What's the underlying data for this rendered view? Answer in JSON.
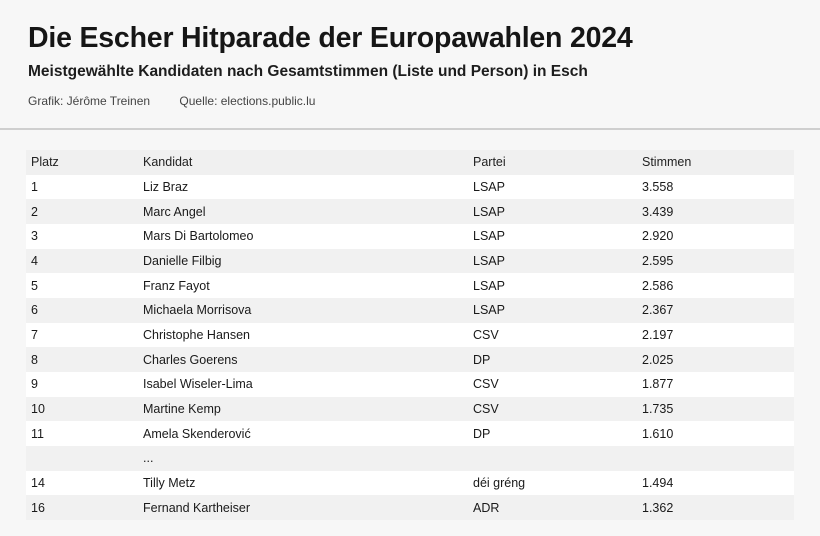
{
  "header": {
    "title": "Die Escher Hitparade der Europawahlen 2024",
    "subtitle": "Meistgewählte Kandidaten nach Gesamtstimmen (Liste und Person) in Esch",
    "credit_graphic": "Grafik: Jérôme Treinen",
    "credit_source": "Quelle: elections.public.lu"
  },
  "chart_data": {
    "type": "table",
    "columns": [
      "Platz",
      "Kandidat",
      "Partei",
      "Stimmen"
    ],
    "rows": [
      [
        "1",
        "Liz Braz",
        "LSAP",
        "3.558"
      ],
      [
        "2",
        "Marc Angel",
        "LSAP",
        "3.439"
      ],
      [
        "3",
        "Mars Di Bartolomeo",
        "LSAP",
        "2.920"
      ],
      [
        "4",
        "Danielle Filbig",
        "LSAP",
        "2.595"
      ],
      [
        "5",
        "Franz Fayot",
        "LSAP",
        "2.586"
      ],
      [
        "6",
        "Michaela Morrisova",
        "LSAP",
        "2.367"
      ],
      [
        "7",
        "Christophe Hansen",
        "CSV",
        "2.197"
      ],
      [
        "8",
        "Charles Goerens",
        "DP",
        "2.025"
      ],
      [
        "9",
        "Isabel Wiseler-Lima",
        "CSV",
        "1.877"
      ],
      [
        "10",
        "Martine Kemp",
        "CSV",
        "1.735"
      ],
      [
        "11",
        "Amela Skenderović",
        "DP",
        "1.610"
      ],
      [
        "",
        "...",
        "",
        ""
      ],
      [
        "14",
        "Tilly Metz",
        "déi gréng",
        "1.494"
      ],
      [
        "16",
        "Fernand Kartheiser",
        "ADR",
        "1.362"
      ]
    ]
  }
}
